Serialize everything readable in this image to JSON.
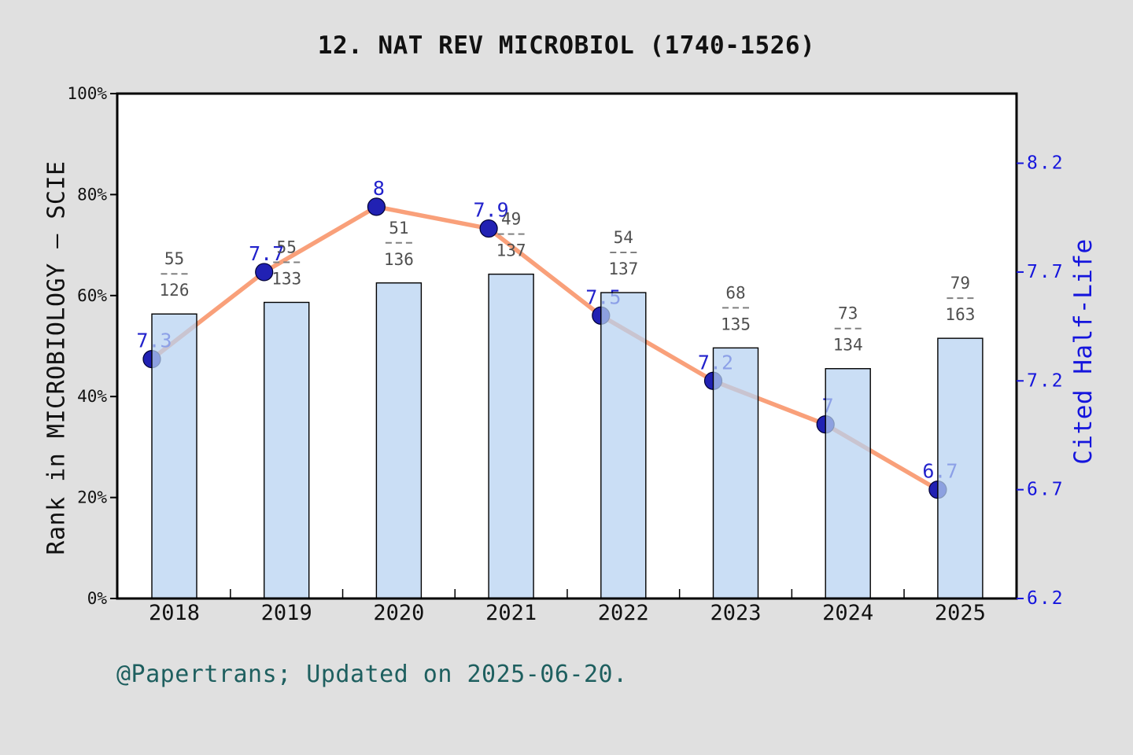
{
  "title": "12. NAT REV MICROBIOL (1740-1526)",
  "footer": "@Papertrans; Updated on 2025-06-20.",
  "left_axis": {
    "label": "Rank in MICROBIOLOGY — SCIE",
    "ticks": [
      "0%",
      "20%",
      "40%",
      "60%",
      "80%",
      "100%"
    ],
    "range": [
      0,
      100
    ]
  },
  "right_axis": {
    "label": "Cited Half-Life",
    "ticks": [
      "6.2",
      "6.7",
      "7.2",
      "7.7",
      "8.2"
    ],
    "range": [
      6.2,
      8.52
    ]
  },
  "chart_data": {
    "type": "combo",
    "categories": [
      "2018",
      "2019",
      "2020",
      "2021",
      "2022",
      "2023",
      "2024",
      "2025"
    ],
    "series": [
      {
        "name": "Rank in MICROBIOLOGY - SCIE",
        "type": "bar",
        "axis": "left",
        "rank": [
          55,
          55,
          51,
          49,
          54,
          68,
          73,
          79
        ],
        "category_size": [
          126,
          133,
          136,
          137,
          137,
          135,
          134,
          163
        ],
        "fraction_labels": [
          "55/126",
          "55/133",
          "51/136",
          "49/137",
          "54/137",
          "68/135",
          "73/134",
          "79/163"
        ],
        "percent_values": [
          56.3,
          58.6,
          62.5,
          64.2,
          60.6,
          49.6,
          45.5,
          51.5
        ]
      },
      {
        "name": "Cited Half-Life",
        "type": "line",
        "axis": "right",
        "values": [
          7.3,
          7.7,
          8.0,
          7.9,
          7.5,
          7.2,
          7.0,
          6.7
        ],
        "point_labels": [
          "7.3",
          "7.7",
          "8",
          "7.9",
          "7.5",
          "7.2",
          "7",
          "6.7"
        ]
      }
    ],
    "left_ylim": [
      0,
      100
    ],
    "right_ylim": [
      6.2,
      8.52
    ],
    "grid": false,
    "legend": false
  },
  "colors": {
    "background": "#e0e0e0",
    "plot_background": "#ffffff",
    "frame": "#000000",
    "bar_fill_rgba": "rgba(181,209,241,0.72)",
    "bar_border": "#000000",
    "line": "#f9a07a",
    "marker": "#2121b3",
    "marker_edge": "#000033",
    "value_label": "#2222cc",
    "right_axis_blue": "#1515dd",
    "axis_text": "#111111",
    "fraction_text": "#4f4f4f",
    "fraction_dash": "#808080",
    "footer_text": "#1e5f5f"
  }
}
